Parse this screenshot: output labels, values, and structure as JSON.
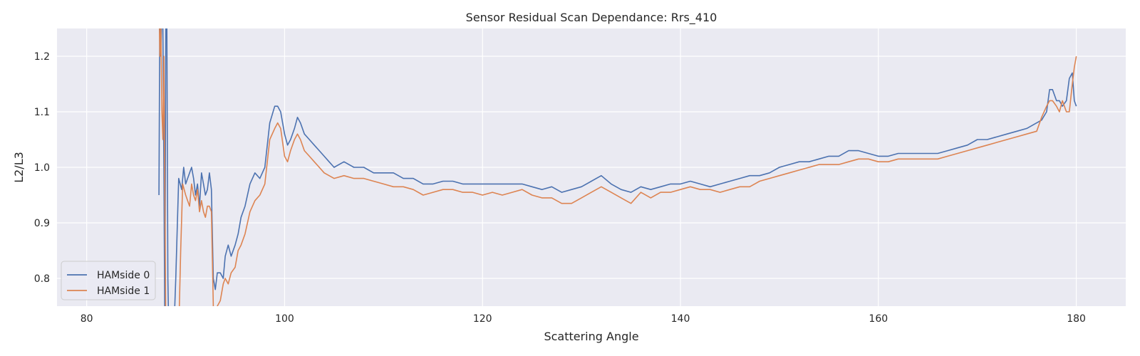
{
  "chart_data": {
    "type": "line",
    "title": "Sensor Residual Scan Dependance: Rrs_410",
    "xlabel": "Scattering Angle",
    "ylabel": "L2/L3",
    "xlim": [
      77,
      185
    ],
    "ylim": [
      0.75,
      1.25
    ],
    "xticks": [
      80,
      100,
      120,
      140,
      160,
      180
    ],
    "yticks": [
      0.8,
      0.9,
      1.0,
      1.1,
      1.2
    ],
    "grid": true,
    "legend_position": "bottom-left",
    "colors": {
      "background": "#eaeaf2",
      "grid": "#ffffff",
      "HAMside 0": "#4c72b0",
      "HAMside 1": "#dd8452"
    },
    "series": [
      {
        "name": "HAMside 0",
        "x": [
          87.3,
          87.4,
          87.5,
          87.6,
          87.7,
          87.8,
          87.9,
          88.0,
          88.1,
          88.2,
          88.3,
          88.4,
          88.5,
          88.8,
          89.0,
          89.3,
          89.6,
          89.8,
          90.0,
          90.2,
          90.4,
          90.6,
          90.8,
          91.0,
          91.2,
          91.4,
          91.6,
          91.8,
          92.0,
          92.2,
          92.4,
          92.6,
          92.8,
          93.0,
          93.2,
          93.5,
          93.8,
          94.0,
          94.3,
          94.6,
          95.0,
          95.3,
          95.6,
          96.0,
          96.5,
          97.0,
          97.5,
          98.0,
          98.5,
          99.0,
          99.3,
          99.6,
          100.0,
          100.3,
          100.6,
          101.0,
          101.3,
          101.6,
          102.0,
          102.5,
          103.0,
          103.5,
          104.0,
          104.5,
          105.0,
          106.0,
          107.0,
          108.0,
          109.0,
          110.0,
          111.0,
          112.0,
          113.0,
          114.0,
          115.0,
          116.0,
          117.0,
          118.0,
          119.0,
          120.0,
          121.0,
          122.0,
          123.0,
          124.0,
          125.0,
          126.0,
          127.0,
          128.0,
          129.0,
          130.0,
          131.0,
          132.0,
          133.0,
          134.0,
          135.0,
          136.0,
          137.0,
          138.0,
          139.0,
          140.0,
          141.0,
          142.0,
          143.0,
          144.0,
          145.0,
          146.0,
          147.0,
          148.0,
          149.0,
          150.0,
          151.0,
          152.0,
          153.0,
          154.0,
          155.0,
          156.0,
          157.0,
          158.0,
          159.0,
          160.0,
          161.0,
          162.0,
          163.0,
          164.0,
          165.0,
          166.0,
          167.0,
          168.0,
          169.0,
          170.0,
          171.0,
          172.0,
          173.0,
          174.0,
          175.0,
          176.0,
          176.5,
          177.0,
          177.3,
          177.6,
          178.0,
          178.3,
          178.6,
          179.0,
          179.3,
          179.6,
          179.8,
          180.0
        ],
        "y": [
          0.95,
          1.3,
          1.2,
          1.3,
          1.25,
          1.0,
          0.7,
          1.3,
          1.25,
          0.8,
          0.7,
          0.7,
          0.7,
          0.7,
          0.8,
          0.98,
          0.96,
          1.0,
          0.97,
          0.98,
          0.99,
          1.0,
          0.98,
          0.95,
          0.97,
          0.93,
          0.99,
          0.97,
          0.95,
          0.96,
          0.99,
          0.96,
          0.8,
          0.78,
          0.81,
          0.81,
          0.8,
          0.84,
          0.86,
          0.84,
          0.86,
          0.88,
          0.91,
          0.93,
          0.97,
          0.99,
          0.98,
          1.0,
          1.08,
          1.11,
          1.11,
          1.1,
          1.06,
          1.04,
          1.05,
          1.07,
          1.09,
          1.08,
          1.06,
          1.05,
          1.04,
          1.03,
          1.02,
          1.01,
          1.0,
          1.01,
          1.0,
          1.0,
          0.99,
          0.99,
          0.99,
          0.98,
          0.98,
          0.97,
          0.97,
          0.975,
          0.975,
          0.97,
          0.97,
          0.97,
          0.97,
          0.97,
          0.97,
          0.97,
          0.965,
          0.96,
          0.965,
          0.955,
          0.96,
          0.965,
          0.975,
          0.985,
          0.97,
          0.96,
          0.955,
          0.965,
          0.96,
          0.965,
          0.97,
          0.97,
          0.975,
          0.97,
          0.965,
          0.97,
          0.975,
          0.98,
          0.985,
          0.985,
          0.99,
          1.0,
          1.005,
          1.01,
          1.01,
          1.015,
          1.02,
          1.02,
          1.03,
          1.03,
          1.025,
          1.02,
          1.02,
          1.025,
          1.025,
          1.025,
          1.025,
          1.025,
          1.03,
          1.035,
          1.04,
          1.05,
          1.05,
          1.055,
          1.06,
          1.065,
          1.07,
          1.08,
          1.085,
          1.1,
          1.14,
          1.14,
          1.12,
          1.12,
          1.11,
          1.12,
          1.16,
          1.17,
          1.12,
          1.11
        ]
      },
      {
        "name": "HAMside 1",
        "x": [
          87.3,
          87.4,
          87.5,
          87.6,
          87.7,
          87.8,
          88.0,
          88.3,
          88.6,
          88.9,
          89.1,
          89.3,
          89.5,
          89.7,
          90.0,
          90.2,
          90.4,
          90.6,
          90.8,
          91.0,
          91.2,
          91.4,
          91.6,
          91.8,
          92.0,
          92.2,
          92.4,
          92.6,
          92.8,
          93.0,
          93.2,
          93.5,
          93.8,
          94.0,
          94.3,
          94.6,
          95.0,
          95.3,
          95.6,
          96.0,
          96.5,
          97.0,
          97.5,
          98.0,
          98.5,
          99.0,
          99.3,
          99.6,
          100.0,
          100.3,
          100.6,
          101.0,
          101.3,
          101.6,
          102.0,
          102.5,
          103.0,
          103.5,
          104.0,
          104.5,
          105.0,
          106.0,
          107.0,
          108.0,
          109.0,
          110.0,
          111.0,
          112.0,
          113.0,
          114.0,
          115.0,
          116.0,
          117.0,
          118.0,
          119.0,
          120.0,
          121.0,
          122.0,
          123.0,
          124.0,
          125.0,
          126.0,
          127.0,
          128.0,
          129.0,
          130.0,
          131.0,
          132.0,
          133.0,
          134.0,
          135.0,
          136.0,
          137.0,
          138.0,
          139.0,
          140.0,
          141.0,
          142.0,
          143.0,
          144.0,
          145.0,
          146.0,
          147.0,
          148.0,
          149.0,
          150.0,
          151.0,
          152.0,
          153.0,
          154.0,
          155.0,
          156.0,
          157.0,
          158.0,
          159.0,
          160.0,
          161.0,
          162.0,
          163.0,
          164.0,
          165.0,
          166.0,
          167.0,
          168.0,
          169.0,
          170.0,
          171.0,
          172.0,
          173.0,
          174.0,
          175.0,
          176.0,
          176.5,
          177.0,
          177.3,
          177.6,
          178.0,
          178.3,
          178.6,
          179.0,
          179.3,
          179.6,
          179.8,
          180.0
        ],
        "y": [
          1.3,
          1.2,
          1.25,
          1.1,
          1.05,
          1.2,
          0.7,
          0.7,
          0.7,
          0.7,
          0.7,
          0.7,
          0.85,
          0.97,
          0.95,
          0.94,
          0.93,
          0.97,
          0.95,
          0.94,
          0.96,
          0.92,
          0.94,
          0.92,
          0.91,
          0.93,
          0.93,
          0.92,
          0.75,
          0.73,
          0.75,
          0.76,
          0.79,
          0.8,
          0.79,
          0.81,
          0.82,
          0.85,
          0.86,
          0.88,
          0.92,
          0.94,
          0.95,
          0.97,
          1.05,
          1.07,
          1.08,
          1.07,
          1.02,
          1.01,
          1.03,
          1.05,
          1.06,
          1.05,
          1.03,
          1.02,
          1.01,
          1.0,
          0.99,
          0.985,
          0.98,
          0.985,
          0.98,
          0.98,
          0.975,
          0.97,
          0.965,
          0.965,
          0.96,
          0.95,
          0.955,
          0.96,
          0.96,
          0.955,
          0.955,
          0.95,
          0.955,
          0.95,
          0.955,
          0.96,
          0.95,
          0.945,
          0.945,
          0.935,
          0.935,
          0.945,
          0.955,
          0.965,
          0.955,
          0.945,
          0.935,
          0.955,
          0.945,
          0.955,
          0.955,
          0.96,
          0.965,
          0.96,
          0.96,
          0.955,
          0.96,
          0.965,
          0.965,
          0.975,
          0.98,
          0.985,
          0.99,
          0.995,
          1.0,
          1.005,
          1.005,
          1.005,
          1.01,
          1.015,
          1.015,
          1.01,
          1.01,
          1.015,
          1.015,
          1.015,
          1.015,
          1.015,
          1.02,
          1.025,
          1.03,
          1.035,
          1.04,
          1.045,
          1.05,
          1.055,
          1.06,
          1.065,
          1.09,
          1.11,
          1.12,
          1.12,
          1.11,
          1.1,
          1.12,
          1.1,
          1.1,
          1.15,
          1.18,
          1.2
        ]
      }
    ]
  }
}
